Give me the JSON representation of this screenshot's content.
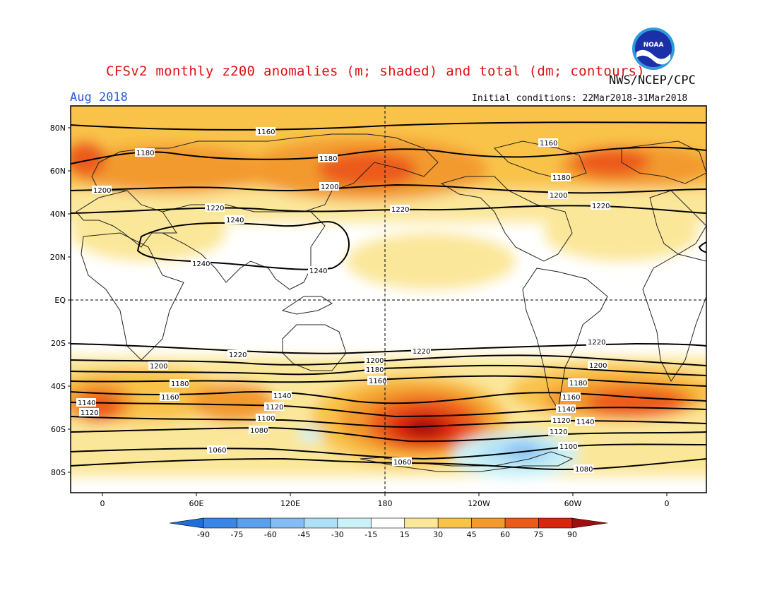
{
  "title": "CFSv2 monthly z200 anomalies (m; shaded) and total (dm; contours)",
  "organization": "NWS/NCEP/CPC",
  "logo_text": "NOAA",
  "valid_month": "Aug 2018",
  "initial_conditions": "Initial conditions: 22Mar2018-31Mar2018",
  "lat_labels": [
    "80N",
    "60N",
    "40N",
    "20N",
    "EQ",
    "20S",
    "40S",
    "60S",
    "80S"
  ],
  "lon_labels": [
    "0",
    "60E",
    "120E",
    "180",
    "120W",
    "60W",
    "0"
  ],
  "colorbar": {
    "labels": [
      "-90",
      "-75",
      "-60",
      "-45",
      "-30",
      "-15",
      "15",
      "30",
      "45",
      "60",
      "75",
      "90"
    ],
    "colors": [
      "#1e6fd9",
      "#3a86e6",
      "#5aa0ee",
      "#84bdf4",
      "#aee0f7",
      "#cbf2f6",
      "#ffffff",
      "#fbe79a",
      "#f9c34a",
      "#f39a2e",
      "#ec5a1a",
      "#d8260e",
      "#a10c0c"
    ]
  },
  "contour_labels": [
    "1160",
    "1180",
    "1200",
    "1220",
    "1240",
    "1240",
    "1240",
    "1160",
    "1180",
    "1180",
    "1200",
    "1200",
    "1220",
    "1220",
    "1200",
    "1220",
    "1220",
    "1220",
    "1200",
    "1200",
    "1180",
    "1160",
    "1140",
    "1120",
    "1140",
    "1120",
    "1180",
    "1160",
    "1140",
    "1120",
    "1100",
    "1080",
    "1060",
    "1060",
    "1080",
    "1100",
    "1120",
    "1140",
    "1160",
    "1180",
    "1200"
  ]
}
